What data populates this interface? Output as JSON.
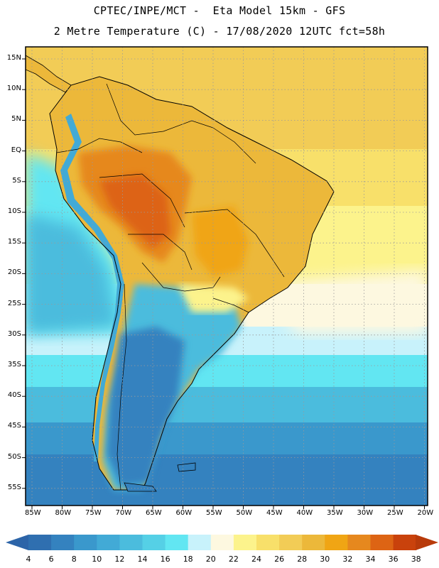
{
  "header": {
    "line1": "CPTEC/INPE/MCT -  Eta Model 15km - GFS",
    "line2": "2 Metre Temperature (C) - 17/08/2020 12UTC fct=58h"
  },
  "map": {
    "lat_labels": [
      "15N",
      "10N",
      "5N",
      "EQ",
      "5S",
      "10S",
      "15S",
      "20S",
      "25S",
      "30S",
      "35S",
      "40S",
      "45S",
      "50S",
      "55S"
    ],
    "lon_labels": [
      "85W",
      "80W",
      "75W",
      "70W",
      "65W",
      "60W",
      "55W",
      "50W",
      "45W",
      "40W",
      "35W",
      "30W",
      "25W",
      "20W"
    ]
  },
  "colorbar": {
    "labels": [
      "4",
      "6",
      "8",
      "10",
      "12",
      "14",
      "16",
      "18",
      "20",
      "22",
      "24",
      "26",
      "28",
      "30",
      "32",
      "34",
      "36",
      "38"
    ],
    "colors": [
      "#2f6fb0",
      "#3482bf",
      "#3a98cc",
      "#42aad6",
      "#4bbcdd",
      "#55d0e6",
      "#62e6f2",
      "#c8f2fb",
      "#fdf8e0",
      "#fcf38c",
      "#f8e06a",
      "#f2cc56",
      "#ecb83a",
      "#f0a514",
      "#e6881e",
      "#dd6414",
      "#c9420c"
    ],
    "low_arrow_color": "#2c64a8",
    "high_arrow_color": "#b83a0a"
  }
}
